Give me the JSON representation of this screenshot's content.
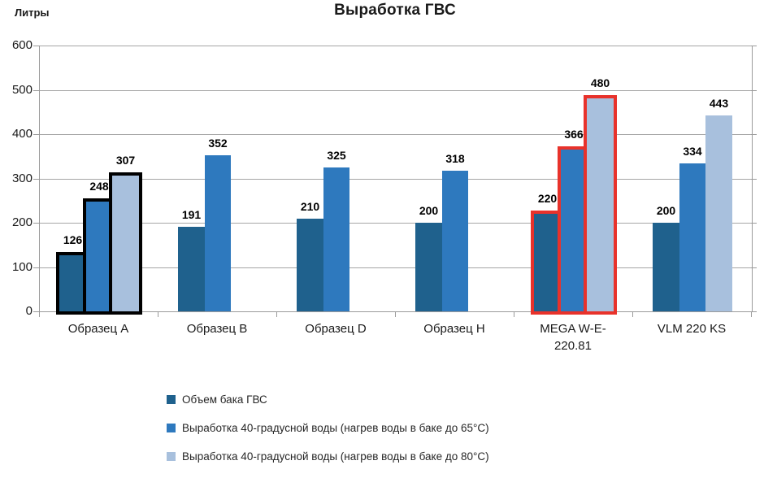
{
  "chart_data": {
    "type": "bar",
    "title": "Выработка ГВС",
    "y_axis_title": "Литры",
    "categories": [
      "Образец A",
      "Образец B",
      "Образец D",
      "Образец H",
      "MEGA W-E-\n220.81",
      "VLM 220 KS"
    ],
    "series": [
      {
        "name": "Объем бака ГВС",
        "color": "#1F618D",
        "values": [
          126,
          191,
          210,
          200,
          220,
          200
        ]
      },
      {
        "name": "Выработка 40-градусной воды (нагрев воды в баке до 65°C)",
        "color": "#2E79BE",
        "values": [
          248,
          352,
          325,
          318,
          366,
          334
        ]
      },
      {
        "name": "Выработка 40-градусной воды (нагрев воды в баке до 80°C)",
        "color": "#A8C0DD",
        "values": [
          307,
          null,
          null,
          null,
          480,
          443
        ]
      }
    ],
    "ylim": [
      0,
      600
    ],
    "yticks": [
      0,
      100,
      200,
      300,
      400,
      500,
      600
    ],
    "grid": true,
    "legend_position": "bottom-left",
    "highlights": [
      {
        "category_index": 0,
        "outline_color": "#000000"
      },
      {
        "category_index": 4,
        "outline_color": "#E8322B"
      }
    ],
    "colors": {
      "gridline": "#A6A6A6",
      "axis": "#9B9B9B",
      "text": "#1A1A1A"
    }
  }
}
